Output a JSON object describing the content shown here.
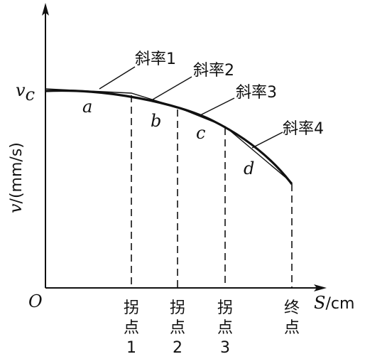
{
  "axes": {
    "origin": "O",
    "y_label_var": "v",
    "y_label_unit": "/(mm/s)",
    "x_label_var": "S",
    "x_label_unit": "/cm",
    "vc_var": "v",
    "vc_sub": "c"
  },
  "segments": [
    "a",
    "b",
    "c",
    "d"
  ],
  "slopes": [
    "斜率1",
    "斜率2",
    "斜率3",
    "斜率4"
  ],
  "breakpoints": [
    {
      "top": "拐",
      "mid": "点",
      "num": "1"
    },
    {
      "top": "拐",
      "mid": "点",
      "num": "2"
    },
    {
      "top": "拐",
      "mid": "点",
      "num": "3"
    }
  ],
  "end_point": {
    "top": "终",
    "mid": "点"
  }
}
